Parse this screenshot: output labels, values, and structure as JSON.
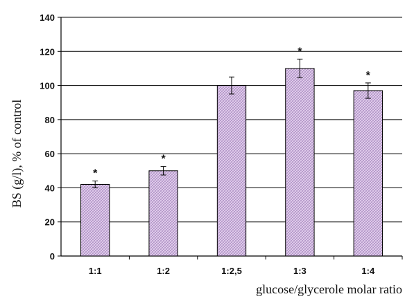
{
  "chart_data": {
    "type": "bar",
    "categories": [
      "1:1",
      "1:2",
      "1:2,5",
      "1:3",
      "1:4"
    ],
    "values": [
      42,
      50,
      100,
      110,
      97
    ],
    "errors": [
      2,
      2.5,
      5,
      5.5,
      4.5
    ],
    "significance": [
      "*",
      "*",
      "",
      "*",
      "*"
    ],
    "xlabel": "glucose/glycerole molar ratio",
    "ylabel": "BS (g/l), % of control",
    "ylim": [
      0,
      140
    ],
    "yticks": [
      0,
      20,
      40,
      60,
      80,
      100,
      120,
      140
    ],
    "grid": true,
    "legend": "none",
    "bar_color": "#d6b8e6"
  }
}
